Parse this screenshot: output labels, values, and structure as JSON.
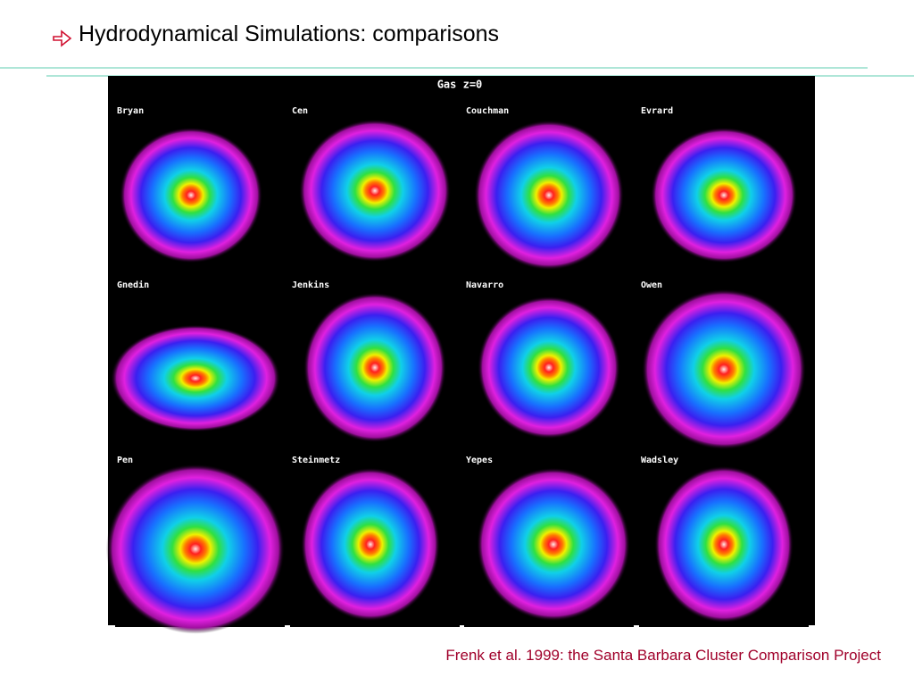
{
  "header": {
    "title": "Hydrodynamical Simulations: comparisons"
  },
  "figure": {
    "title": "Gas z=0",
    "panels": [
      "Bryan",
      "Cen",
      "Couchman",
      "Evrard",
      "Gnedin",
      "Jenkins",
      "Navarro",
      "Owen",
      "Pen",
      "Steinmetz",
      "Yepes",
      "Wadsley"
    ]
  },
  "caption": "Frenk et al. 1999: the Santa Barbara Cluster Comparison Project"
}
